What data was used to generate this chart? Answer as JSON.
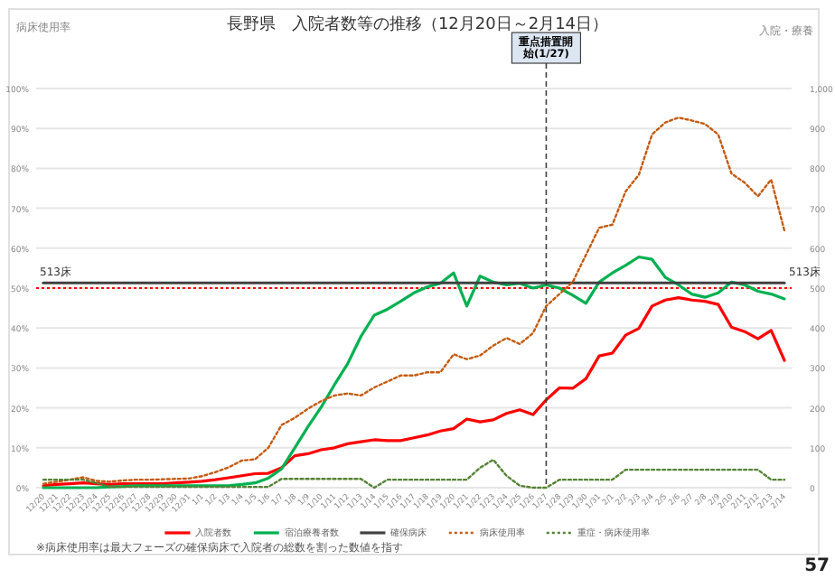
{
  "chart_data": {
    "type": "line",
    "title": "長野県　入院者数等の推移（12月20日～2月14日）",
    "categories": [
      "12/20",
      "12/21",
      "12/22",
      "12/23",
      "12/24",
      "12/25",
      "12/26",
      "12/27",
      "12/28",
      "12/29",
      "12/30",
      "12/31",
      "1/1",
      "1/2",
      "1/3",
      "1/4",
      "1/5",
      "1/6",
      "1/7",
      "1/8",
      "1/9",
      "1/10",
      "1/11",
      "1/12",
      "1/13",
      "1/14",
      "1/15",
      "1/16",
      "1/17",
      "1/18",
      "1/19",
      "1/20",
      "1/21",
      "1/22",
      "1/23",
      "1/24",
      "1/25",
      "1/26",
      "1/27",
      "1/28",
      "1/29",
      "1/30",
      "1/31",
      "2/1",
      "2/2",
      "2/3",
      "2/4",
      "2/5",
      "2/6",
      "2/7",
      "2/8",
      "2/9",
      "2/10",
      "2/11",
      "2/12",
      "2/13",
      "2/14"
    ],
    "series": [
      {
        "name": "入院者数",
        "color": "#ff0000",
        "axis": "y2",
        "line_style": "solid",
        "values": [
          5,
          8,
          10,
          12,
          10,
          8,
          10,
          10,
          10,
          10,
          12,
          14,
          16,
          20,
          25,
          30,
          35,
          36,
          50,
          80,
          85,
          95,
          100,
          110,
          115,
          120,
          118,
          118,
          125,
          132,
          142,
          148,
          172,
          165,
          170,
          186,
          195,
          183,
          220,
          250,
          249,
          273,
          330,
          337,
          382,
          399,
          455,
          470,
          476,
          470,
          467,
          459,
          402,
          391,
          373,
          394,
          319
        ]
      },
      {
        "name": "宿泊療養者数",
        "color": "#00b050",
        "axis": "y2",
        "line_style": "solid",
        "values": [
          0,
          0,
          0,
          0,
          0,
          2,
          3,
          5,
          5,
          5,
          5,
          5,
          5,
          5,
          5,
          8,
          12,
          24,
          47,
          100,
          153,
          202,
          258,
          311,
          379,
          432,
          447,
          467,
          488,
          503,
          512,
          538,
          455,
          530,
          515,
          508,
          512,
          500,
          508,
          500,
          482,
          462,
          515,
          538,
          557,
          578,
          572,
          527,
          508,
          485,
          477,
          488,
          515,
          508,
          492,
          485,
          473
        ]
      },
      {
        "name": "確保病床",
        "color": "#404040",
        "axis": "y2",
        "line_style": "solid",
        "values": [
          513,
          513,
          513,
          513,
          513,
          513,
          513,
          513,
          513,
          513,
          513,
          513,
          513,
          513,
          513,
          513,
          513,
          513,
          513,
          513,
          513,
          513,
          513,
          513,
          513,
          513,
          513,
          513,
          513,
          513,
          513,
          513,
          513,
          513,
          513,
          513,
          513,
          513,
          513,
          513,
          513,
          513,
          513,
          513,
          513,
          513,
          513,
          513,
          513,
          513,
          513,
          513,
          513,
          513,
          513,
          513,
          513
        ]
      },
      {
        "name": "病床使用率",
        "color": "#c55a11",
        "line_style": "dotted",
        "values": [
          1,
          1.5,
          2,
          2.6,
          1.7,
          1.5,
          1.8,
          2,
          2,
          2.1,
          2.2,
          2.3,
          2.9,
          3.9,
          5.1,
          6.8,
          7.1,
          10,
          15.7,
          17.5,
          19.8,
          21.7,
          23.1,
          23.6,
          23.1,
          25.1,
          26.6,
          28.1,
          28.1,
          28.9,
          28.9,
          33.4,
          32.2,
          33.1,
          35.6,
          37.5,
          36,
          38.7,
          45.5,
          48.5,
          51.5,
          58.3,
          65.1,
          65.9,
          74.2,
          78.4,
          88.5,
          91.5,
          92.7,
          92,
          91.1,
          88.5,
          78.7,
          76.4,
          73,
          77.2,
          64.4
        ]
      },
      {
        "name": "重症・病床使用率",
        "color": "#548235",
        "line_style": "dotted",
        "values": [
          2,
          2,
          2,
          2,
          1.2,
          0.2,
          0.2,
          0.2,
          0.2,
          0.2,
          0.2,
          0.2,
          0.2,
          0.2,
          0.2,
          0.2,
          0.2,
          0.2,
          2.2,
          2.2,
          2.2,
          2.2,
          2.2,
          2.2,
          2.2,
          0,
          2,
          2,
          2,
          2,
          2,
          2,
          2,
          5,
          7,
          3,
          0.5,
          0,
          0,
          2,
          2,
          2,
          2,
          2,
          4.5,
          4.5,
          4.5,
          4.5,
          4.5,
          4.5,
          4.5,
          4.5,
          4.5,
          4.5,
          4.5,
          2,
          2
        ]
      }
    ],
    "ylim": [
      0,
      100
    ],
    "yticks": [
      {
        "value": 0,
        "label": "0%"
      },
      {
        "value": 10,
        "label": "10%"
      },
      {
        "value": 20,
        "label": "20%"
      },
      {
        "value": 30,
        "label": "30%"
      },
      {
        "value": 40,
        "label": "40%"
      },
      {
        "value": 50,
        "label": "50%"
      },
      {
        "value": 60,
        "label": "60%"
      },
      {
        "value": 70,
        "label": "70%"
      },
      {
        "value": 80,
        "label": "80%"
      },
      {
        "value": 90,
        "label": "90%"
      },
      {
        "value": 100,
        "label": "100%"
      }
    ],
    "y2lim": [
      0,
      1000
    ],
    "y2ticks": [
      0,
      100,
      200,
      300,
      400,
      500,
      600,
      700,
      800,
      900,
      {
        "value": 1000,
        "label": "1,000"
      }
    ],
    "ref_lines": [
      {
        "axis": "y",
        "value": 50,
        "color": "#ff0000",
        "line_style": "dotted"
      },
      {
        "axis": "x",
        "value": "1/27",
        "label": "重点措置開始(1/27)",
        "color": "#404040",
        "line_style": "dashed"
      }
    ],
    "annotations": [
      "病床使用率",
      "入院・療養",
      "513床",
      "513床",
      "※病床使用率は最大フェーズの確保病床で入院者の総数を割った数値を指す",
      "57"
    ],
    "grid": "y",
    "legend": "bottom",
    "marker": "none"
  }
}
